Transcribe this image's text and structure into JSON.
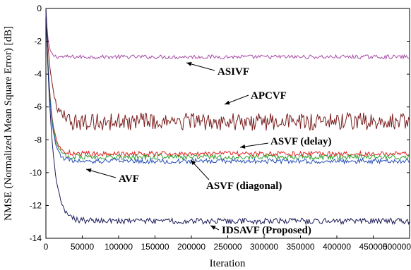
{
  "chart_data": {
    "type": "line",
    "title": "",
    "xlabel": "Iteration",
    "ylabel": "NMSE (Normalized Mean Square Error) [dB]",
    "xlim": [
      0,
      500000
    ],
    "ylim": [
      -14,
      0
    ],
    "xticks": [
      "0",
      "50000",
      "100000",
      "150000",
      "200000",
      "250000",
      "300000",
      "350000",
      "400000",
      "450000",
      "500000"
    ],
    "yticks": [
      "0",
      "-2",
      "-4",
      "-6",
      "-8",
      "-10",
      "-12",
      "-14"
    ],
    "grid": false,
    "legend": "none",
    "series": [
      {
        "name": "ASIVF",
        "color": "#a64ca6",
        "steady_db": -2.95,
        "fluctuation_db": 0.12,
        "convergence_iterations": 12000,
        "x": [
          0,
          500000
        ],
        "y": [
          0,
          -2.95
        ]
      },
      {
        "name": "APCVF",
        "color": "#7a1f1f",
        "steady_db": -6.9,
        "fluctuation_db": 0.55,
        "convergence_iterations": 30000,
        "x": [
          0,
          500000
        ],
        "y": [
          0,
          -6.9
        ]
      },
      {
        "name": "ASVF (delay)",
        "color": "#e02020",
        "steady_db": -8.85,
        "fluctuation_db": 0.15,
        "convergence_iterations": 25000,
        "x": [
          0,
          500000
        ],
        "y": [
          0,
          -8.85
        ]
      },
      {
        "name": "AVF",
        "color": "#30a030",
        "steady_db": -9.05,
        "fluctuation_db": 0.15,
        "convergence_iterations": 25000,
        "x": [
          0,
          500000
        ],
        "y": [
          0,
          -9.05
        ]
      },
      {
        "name": "ASVF (diagonal)",
        "color": "#2850b8",
        "steady_db": -9.3,
        "fluctuation_db": 0.15,
        "convergence_iterations": 25000,
        "x": [
          0,
          500000
        ],
        "y": [
          0,
          -9.3
        ]
      },
      {
        "name": "IDSAVF (Proposed)",
        "color": "#1c1c5a",
        "steady_db": -12.95,
        "fluctuation_db": 0.18,
        "convergence_iterations": 35000,
        "x": [
          0,
          500000
        ],
        "y": [
          0,
          -12.95
        ]
      }
    ],
    "annotations": [
      {
        "text": "ASIVF",
        "points_to": "ASIVF"
      },
      {
        "text": "APCVF",
        "points_to": "APCVF"
      },
      {
        "text": "ASVF (delay)",
        "points_to": "ASVF (delay)"
      },
      {
        "text": "AVF",
        "points_to": "AVF"
      },
      {
        "text": "ASVF (diagonal)",
        "points_to": "ASVF (diagonal)"
      },
      {
        "text": "IDSAVF (Proposed)",
        "points_to": "IDSAVF (Proposed)"
      }
    ]
  }
}
